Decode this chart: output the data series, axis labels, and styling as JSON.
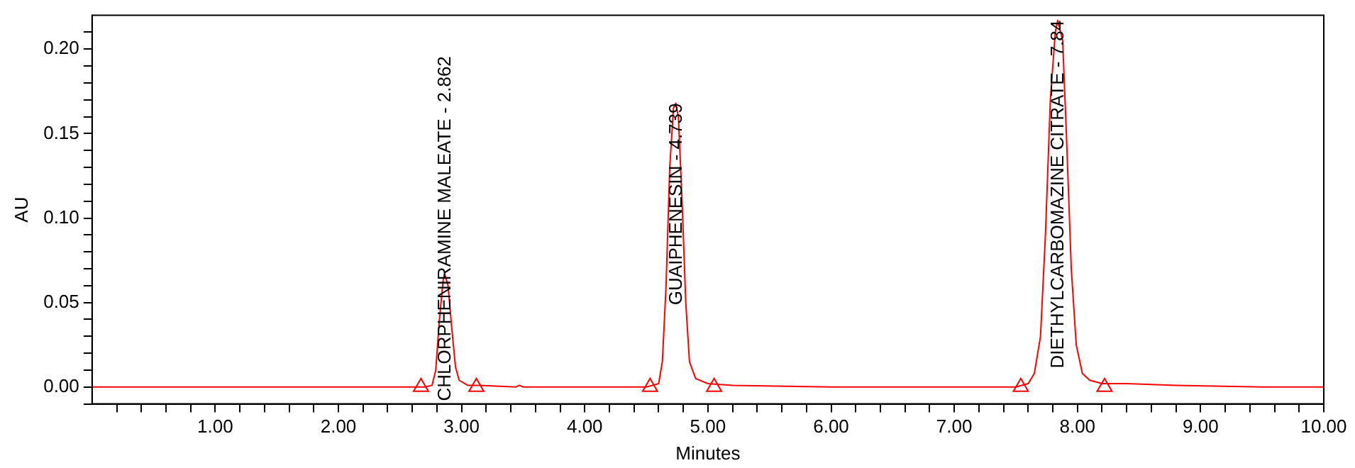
{
  "chart_data": {
    "type": "line",
    "xlabel": "Minutes",
    "ylabel": "AU",
    "xlim": [
      0,
      10
    ],
    "ylim": [
      -0.01,
      0.22
    ],
    "xticks": [
      {
        "value": 0.2,
        "label": null
      },
      {
        "value": 0.4,
        "label": null
      },
      {
        "value": 0.6,
        "label": null
      },
      {
        "value": 0.8,
        "label": null
      },
      {
        "value": 1,
        "label": "1.00"
      },
      {
        "value": 1.2,
        "label": null
      },
      {
        "value": 1.4,
        "label": null
      },
      {
        "value": 1.6,
        "label": null
      },
      {
        "value": 1.8,
        "label": null
      },
      {
        "value": 2,
        "label": "2.00"
      },
      {
        "value": 2.2,
        "label": null
      },
      {
        "value": 2.4,
        "label": null
      },
      {
        "value": 2.6,
        "label": null
      },
      {
        "value": 2.8,
        "label": null
      },
      {
        "value": 3,
        "label": "3.00"
      },
      {
        "value": 3.2,
        "label": null
      },
      {
        "value": 3.4,
        "label": null
      },
      {
        "value": 3.6,
        "label": null
      },
      {
        "value": 3.8,
        "label": null
      },
      {
        "value": 4,
        "label": "4.00"
      },
      {
        "value": 4.2,
        "label": null
      },
      {
        "value": 4.4,
        "label": null
      },
      {
        "value": 4.6,
        "label": null
      },
      {
        "value": 4.8,
        "label": null
      },
      {
        "value": 5,
        "label": "5.00"
      },
      {
        "value": 5.2,
        "label": null
      },
      {
        "value": 5.4,
        "label": null
      },
      {
        "value": 5.6,
        "label": null
      },
      {
        "value": 5.8,
        "label": null
      },
      {
        "value": 6,
        "label": "6.00"
      },
      {
        "value": 6.2,
        "label": null
      },
      {
        "value": 6.4,
        "label": null
      },
      {
        "value": 6.6,
        "label": null
      },
      {
        "value": 6.8,
        "label": null
      },
      {
        "value": 7,
        "label": "7.00"
      },
      {
        "value": 7.2,
        "label": null
      },
      {
        "value": 7.4,
        "label": null
      },
      {
        "value": 7.6,
        "label": null
      },
      {
        "value": 7.8,
        "label": null
      },
      {
        "value": 8,
        "label": "8.00"
      },
      {
        "value": 8.2,
        "label": null
      },
      {
        "value": 8.4,
        "label": null
      },
      {
        "value": 8.6,
        "label": null
      },
      {
        "value": 8.8,
        "label": null
      },
      {
        "value": 9,
        "label": "9.00"
      },
      {
        "value": 9.2,
        "label": null
      },
      {
        "value": 9.4,
        "label": null
      },
      {
        "value": 9.6,
        "label": null
      },
      {
        "value": 9.8,
        "label": null
      },
      {
        "value": 10,
        "label": "10.00"
      }
    ],
    "yticks": [
      {
        "value": -0.01,
        "label": null
      },
      {
        "value": 0,
        "label": "0.00"
      },
      {
        "value": 0.01,
        "label": null
      },
      {
        "value": 0.02,
        "label": null
      },
      {
        "value": 0.03,
        "label": null
      },
      {
        "value": 0.04,
        "label": null
      },
      {
        "value": 0.05,
        "label": "0.05"
      },
      {
        "value": 0.06,
        "label": null
      },
      {
        "value": 0.07,
        "label": null
      },
      {
        "value": 0.08,
        "label": null
      },
      {
        "value": 0.09,
        "label": null
      },
      {
        "value": 0.1,
        "label": "0.10"
      },
      {
        "value": 0.11,
        "label": null
      },
      {
        "value": 0.12,
        "label": null
      },
      {
        "value": 0.13,
        "label": null
      },
      {
        "value": 0.14,
        "label": null
      },
      {
        "value": 0.15,
        "label": "0.15"
      },
      {
        "value": 0.16,
        "label": null
      },
      {
        "value": 0.17,
        "label": null
      },
      {
        "value": 0.18,
        "label": null
      },
      {
        "value": 0.19,
        "label": null
      },
      {
        "value": 0.2,
        "label": "0.20"
      },
      {
        "value": 0.21,
        "label": null
      }
    ],
    "grid": false,
    "legend": false,
    "line_style": "solid",
    "series": [
      {
        "color": "#ff0000",
        "marker": "none",
        "x": [
          0,
          2,
          2.7,
          2.76,
          2.79,
          2.82,
          2.85,
          2.862,
          2.89,
          2.92,
          2.95,
          2.98,
          3.05,
          3.15,
          3.44,
          3.47,
          3.5,
          4.5,
          4.6,
          4.63,
          4.66,
          4.69,
          4.72,
          4.739,
          4.76,
          4.79,
          4.82,
          4.85,
          4.9,
          5,
          5.2,
          6,
          7.5,
          7.6,
          7.65,
          7.7,
          7.74,
          7.78,
          7.82,
          7.84,
          7.88,
          7.91,
          7.95,
          7.99,
          8.04,
          8.1,
          8.2,
          8.4,
          8.8,
          9.5,
          10
        ],
        "values": [
          0,
          0,
          0,
          0.001,
          0.01,
          0.04,
          0.063,
          0.067,
          0.06,
          0.035,
          0.012,
          0.004,
          0.001,
          0.001,
          0,
          0.001,
          0,
          0,
          0.002,
          0.015,
          0.06,
          0.13,
          0.165,
          0.168,
          0.16,
          0.11,
          0.05,
          0.015,
          0.005,
          0.002,
          0.001,
          0,
          0,
          0.002,
          0.008,
          0.03,
          0.09,
          0.17,
          0.21,
          0.217,
          0.205,
          0.15,
          0.07,
          0.025,
          0.008,
          0.004,
          0.002,
          0.002,
          0.001,
          0,
          0
        ]
      },
      {
        "type": "scatter",
        "color": "#ff0000",
        "marker": "triangle",
        "x": [
          2.67,
          3.12,
          4.53,
          5.05,
          7.54,
          8.22
        ],
        "values": [
          0,
          0,
          0,
          0,
          0,
          0
        ]
      }
    ],
    "annotations": [
      {
        "text": "CHLORPHENIRAMINE MALEATE - 2.862",
        "x": 2.862,
        "y": 0.067
      },
      {
        "text": "GUAIPHENESIN - 4.739",
        "x": 4.739,
        "y": 0.168
      },
      {
        "text": "DIETHYLCARBOMAZINE CITRATE - 7.84",
        "x": 7.84,
        "y": 0.217
      }
    ]
  }
}
